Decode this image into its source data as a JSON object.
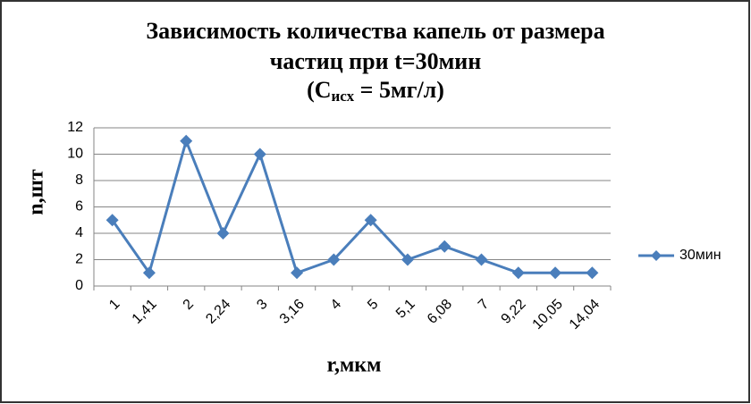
{
  "chart_data": {
    "type": "line",
    "title": [
      "Зависимость количества капель от размера",
      "частиц при t=30мин"
    ],
    "title_note": {
      "open": "(С",
      "sub": "исх",
      "close": " = 5мг/л)"
    },
    "x_label": "r,мкм",
    "y_label": "n,шт",
    "categories": [
      "1",
      "1,41",
      "2",
      "2,24",
      "3",
      "3,16",
      "4",
      "5",
      "5,1",
      "6,08",
      "7",
      "9,22",
      "10,05",
      "14,04"
    ],
    "series": [
      {
        "name": "30мин",
        "color": "#4a7ebb",
        "values": [
          5,
          1,
          11,
          4,
          10,
          1,
          2,
          5,
          2,
          3,
          2,
          1,
          1,
          1
        ]
      }
    ],
    "ylim": [
      0,
      12
    ],
    "yticks": [
      0,
      2,
      4,
      6,
      8,
      10,
      12
    ],
    "grid": true,
    "legend": "right"
  }
}
